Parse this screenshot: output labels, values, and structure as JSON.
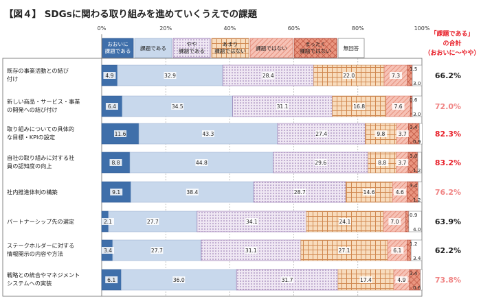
{
  "chart_data": {
    "type": "bar",
    "orientation": "horizontal",
    "stacked": true,
    "title": "【図４】 SDGsに関わる取り組みを進めていくうえでの課題",
    "x_ticks": [
      "0%",
      "20%",
      "40%",
      "60%",
      "80%",
      "100%"
    ],
    "xlim": [
      0,
      100
    ],
    "legend_position": "top",
    "side_header": [
      "「課題である」",
      "の合計",
      "（おおいに～やや）"
    ],
    "series": [
      {
        "name": "おおいに課題である",
        "label_lines": [
          "おおいに",
          "課題である"
        ],
        "color": "#3f6faa",
        "values": [
          4.9,
          6.4,
          11.6,
          8.8,
          9.1,
          2.1,
          3.4,
          6.1
        ]
      },
      {
        "name": "課題である",
        "label_lines": [
          "課題である"
        ],
        "color": "#c5d5ea",
        "values": [
          32.9,
          34.5,
          43.3,
          44.8,
          38.4,
          27.7,
          27.7,
          36.0
        ]
      },
      {
        "name": "やや課題である",
        "label_lines": [
          "やや",
          "課題である"
        ],
        "color": "#ebe2f0",
        "values": [
          28.4,
          31.1,
          27.4,
          29.6,
          28.7,
          34.1,
          31.1,
          31.7
        ]
      },
      {
        "name": "あまり課題ではない",
        "label_lines": [
          "あまり",
          "課題ではない"
        ],
        "color": "#f6d6b3",
        "values": [
          22.0,
          16.8,
          9.8,
          8.8,
          14.6,
          24.1,
          27.1,
          17.4
        ]
      },
      {
        "name": "課題ではない",
        "label_lines": [
          "課題ではない"
        ],
        "color": "#f2b0a3",
        "values": [
          7.3,
          7.6,
          3.7,
          3.7,
          4.6,
          7.0,
          6.1,
          4.9
        ]
      },
      {
        "name": "まったく課題ではない",
        "label_lines": [
          "まったく",
          "課題ではない"
        ],
        "color": "#e07a66",
        "values": [
          1.5,
          0.6,
          3.4,
          3.0,
          3.4,
          0.9,
          1.2,
          3.4
        ]
      },
      {
        "name": "無回答",
        "label_lines": [
          "無回答"
        ],
        "color": "#ffffff",
        "values": [
          3.0,
          3.0,
          0.9,
          1.2,
          1.2,
          4.0,
          3.4,
          0.6
        ]
      }
    ],
    "categories": [
      {
        "lines": [
          "既存の事業活動との結び",
          "付け"
        ],
        "total": "66.2%",
        "total_color": "#222222"
      },
      {
        "lines": [
          "新しい商品・サービス・事業",
          "の開発への結び付け"
        ],
        "total": "72.0%",
        "total_color": "#f08585"
      },
      {
        "lines": [
          "取り組みについての具体的",
          "な目標・KPIの設定"
        ],
        "total": "82.3%",
        "total_color": "#e8202a"
      },
      {
        "lines": [
          "自社の取り組みに対する社",
          "員の認知度の向上"
        ],
        "total": "83.2%",
        "total_color": "#e8202a"
      },
      {
        "lines": [
          "社内推進体制の構築"
        ],
        "total": "76.2%",
        "total_color": "#f08585"
      },
      {
        "lines": [
          "パートナーシップ先の選定"
        ],
        "total": "63.9%",
        "total_color": "#222222"
      },
      {
        "lines": [
          "ステークホルダーに対する",
          "情報開示の内容や方法"
        ],
        "total": "62.2%",
        "total_color": "#222222"
      },
      {
        "lines": [
          "戦略との統合やマネジメント",
          "システムへの実装"
        ],
        "total": "73.8%",
        "total_color": "#f08585"
      }
    ]
  }
}
